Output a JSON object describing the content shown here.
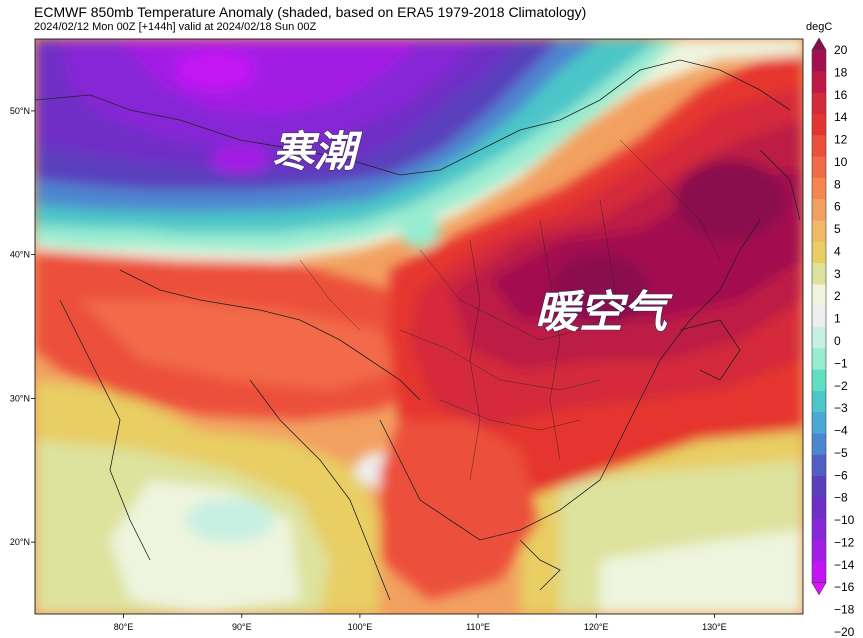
{
  "header": {
    "title": "ECMWF 850mb Temperature Anomaly (shaded, based on ERA5 1979-2018 Climatology)",
    "subtitle": "2024/02/12 Mon 00Z [+144h] valid at 2024/02/18 Sun 00Z",
    "unit": "degC"
  },
  "annotations": {
    "cold": "寒潮",
    "warm": "暖空气"
  },
  "chart_data": {
    "type": "heatmap",
    "x_ticks": [
      "80°E",
      "90°E",
      "100°E",
      "110°E",
      "120°E",
      "130°E"
    ],
    "y_ticks": [
      "50°N",
      "40°N",
      "30°N",
      "20°N"
    ],
    "xlim": [
      72.5,
      137.5
    ],
    "ylim": [
      15,
      55
    ],
    "colorbar": {
      "levels": [
        20,
        18,
        16,
        14,
        12,
        10,
        8,
        6,
        5,
        4,
        3,
        2,
        1,
        0,
        -1,
        -2,
        -3,
        -4,
        -5,
        -6,
        -8,
        -10,
        -12,
        -14,
        -16,
        -18,
        -20
      ],
      "labels": [
        "20",
        "18",
        "16",
        "14",
        "12",
        "10",
        "8",
        "6",
        "5",
        "4",
        "3",
        "2",
        "1",
        "0",
        "−1",
        "−2",
        "−3",
        "−4",
        "−5",
        "−6",
        "−8",
        "−10",
        "−12",
        "−14",
        "−16",
        "−18",
        "−20"
      ],
      "colors": [
        "#8a0a4e",
        "#a3104f",
        "#bd1a45",
        "#d42a3a",
        "#e5342f",
        "#ec4f3a",
        "#f26a48",
        "#f4874f",
        "#f2a060",
        "#efb968",
        "#e8ce64",
        "#dde29c",
        "#eef4de",
        "#eeeeee",
        "#c7f0e2",
        "#98ecd0",
        "#62dfc0",
        "#4cc6c8",
        "#4aa8d4",
        "#4d86d0",
        "#515fc4",
        "#5a3fbd",
        "#6f2ec6",
        "#8727d6",
        "#a31ee4",
        "#c414f5",
        "#de10ff"
      ]
    }
  }
}
